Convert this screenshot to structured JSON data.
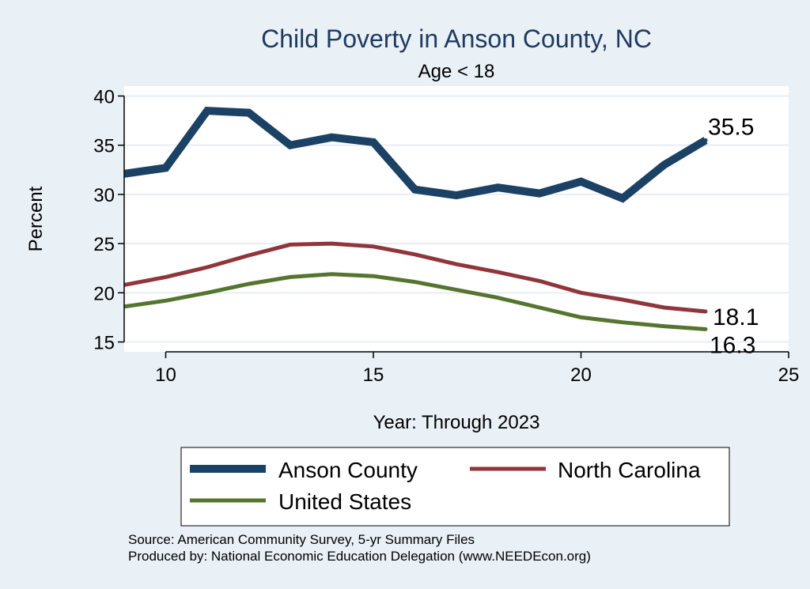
{
  "chart_data": {
    "type": "line",
    "title": "Child Poverty in Anson County, NC",
    "subtitle": "Age < 18",
    "xlabel": "Year: Through 2023",
    "ylabel": "Percent",
    "xlim": [
      9,
      25
    ],
    "ylim": [
      14,
      41
    ],
    "xticks": [
      10,
      15,
      20,
      25
    ],
    "yticks": [
      15,
      20,
      25,
      30,
      35,
      40
    ],
    "grid": true,
    "x": [
      9,
      10,
      11,
      12,
      13,
      14,
      15,
      16,
      17,
      18,
      19,
      20,
      21,
      22,
      23
    ],
    "series": [
      {
        "name": "Anson County",
        "color": "#1b4165",
        "values": [
          32.1,
          32.7,
          38.5,
          38.3,
          35.0,
          35.8,
          35.3,
          30.5,
          29.9,
          30.7,
          30.1,
          31.3,
          29.6,
          33.0,
          35.5
        ],
        "end_label": "35.5"
      },
      {
        "name": "North Carolina",
        "color": "#90353b",
        "values": [
          20.8,
          21.6,
          22.6,
          23.8,
          24.9,
          25.0,
          24.7,
          23.9,
          22.9,
          22.1,
          21.2,
          20.0,
          19.3,
          18.5,
          18.1
        ],
        "end_label": "18.1"
      },
      {
        "name": "United States",
        "color": "#55752f",
        "values": [
          18.6,
          19.2,
          20.0,
          20.9,
          21.6,
          21.9,
          21.7,
          21.1,
          20.3,
          19.5,
          18.5,
          17.5,
          17.0,
          16.6,
          16.3
        ],
        "end_label": "16.3"
      }
    ],
    "legend": {
      "position": "bottom",
      "border": true
    },
    "notes": [
      "Source: American Community Survey, 5-yr Summary Files",
      "Produced by: National Economic Education Delegation (www.NEEDEcon.org)"
    ]
  }
}
